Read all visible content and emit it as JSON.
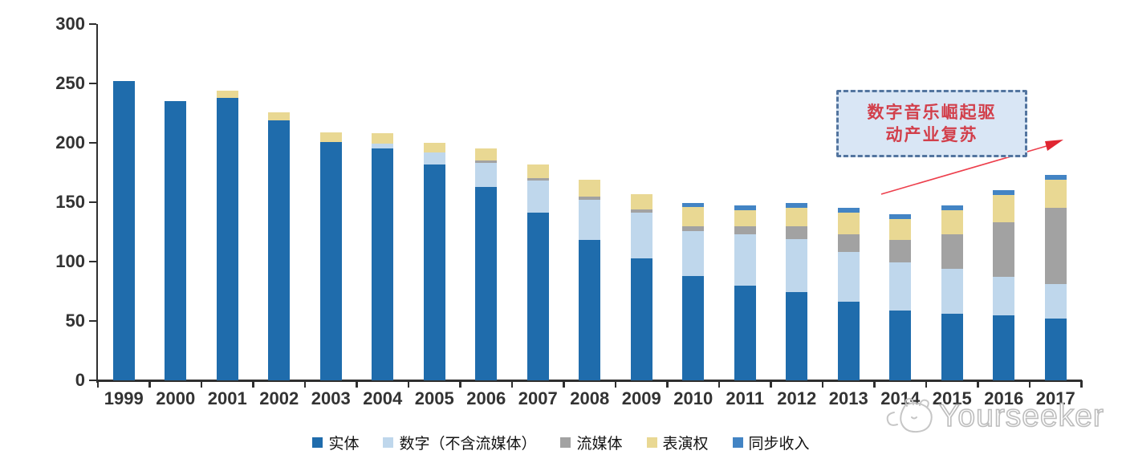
{
  "chart_data": {
    "type": "bar",
    "stacked": true,
    "title": "",
    "xlabel": "",
    "ylabel": "",
    "ylim": [
      0,
      300
    ],
    "yticks": [
      0,
      50,
      100,
      150,
      200,
      250,
      300
    ],
    "grid": false,
    "legend_position": "bottom",
    "categories": [
      "1999",
      "2000",
      "2001",
      "2002",
      "2003",
      "2004",
      "2005",
      "2006",
      "2007",
      "2008",
      "2009",
      "2010",
      "2011",
      "2012",
      "2013",
      "2014",
      "2015",
      "2016",
      "2017"
    ],
    "series": [
      {
        "name": "实体",
        "color": "#1f6cac",
        "values": [
          252,
          235,
          238,
          219,
          201,
          195,
          182,
          163,
          141,
          118,
          103,
          88,
          80,
          74,
          66,
          59,
          56,
          55,
          52
        ]
      },
      {
        "name": "数字（不含流媒体）",
        "color": "#bfd7ec",
        "values": [
          0,
          0,
          0,
          0,
          0,
          4,
          10,
          20,
          27,
          34,
          38,
          38,
          43,
          45,
          42,
          40,
          38,
          32,
          29
        ]
      },
      {
        "name": "流媒体",
        "color": "#a2a2a2",
        "values": [
          0,
          0,
          0,
          0,
          0,
          0,
          0,
          2,
          2,
          3,
          3,
          4,
          7,
          11,
          15,
          19,
          29,
          46,
          64
        ]
      },
      {
        "name": "表演权",
        "color": "#e9d893",
        "values": [
          0,
          0,
          6,
          7,
          8,
          9,
          8,
          10,
          12,
          14,
          13,
          16,
          13,
          15,
          18,
          18,
          20,
          23,
          24
        ]
      },
      {
        "name": "同步收入",
        "color": "#4384c4",
        "values": [
          0,
          0,
          0,
          0,
          0,
          0,
          0,
          0,
          0,
          0,
          0,
          3,
          4,
          4,
          4,
          4,
          4,
          4,
          4
        ]
      }
    ]
  },
  "annotation": {
    "lines": [
      "数字音乐崛起驱",
      "动产业复苏"
    ],
    "text_color": "#d23f4b",
    "box_fill": "#d9e6f5",
    "box_border": "#53759f",
    "arrow_color": "#ed3f4c"
  },
  "watermark": {
    "text": "Yourseeker",
    "logo": "cat-doodle-icon"
  }
}
